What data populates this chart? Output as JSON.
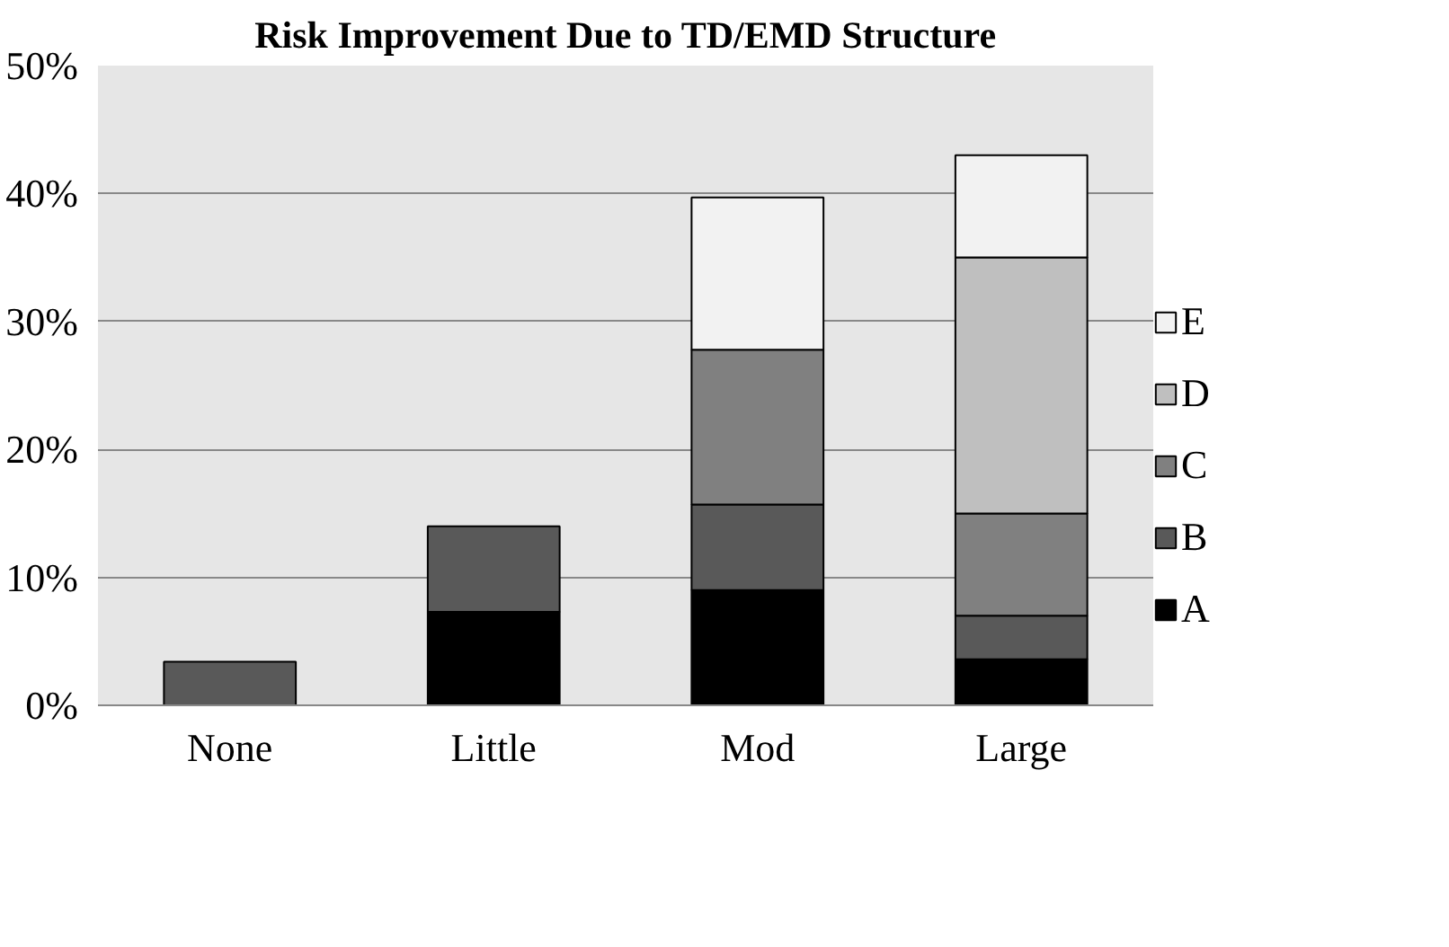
{
  "chart_data": {
    "type": "bar",
    "title": "Risk Improvement Due to TD/EMD Structure",
    "stacked": true,
    "categories": [
      "None",
      "Little",
      "Mod",
      "Large"
    ],
    "series": [
      {
        "name": "A",
        "color": "#000000",
        "values": [
          null,
          7.3,
          9.0,
          3.6
        ]
      },
      {
        "name": "B",
        "color": "#595959",
        "values": [
          3.4,
          6.7,
          6.7,
          3.4
        ]
      },
      {
        "name": "C",
        "color": "#808080",
        "values": [
          null,
          null,
          12.1,
          8.0
        ]
      },
      {
        "name": "D",
        "color": "#bfbfbf",
        "values": [
          null,
          null,
          null,
          20.0
        ]
      },
      {
        "name": "E",
        "color": "#f2f2f2",
        "values": [
          null,
          null,
          11.9,
          8.0
        ]
      }
    ],
    "ylim": [
      0,
      50
    ],
    "yticks": [
      {
        "value": 0,
        "label": "0%"
      },
      {
        "value": 10,
        "label": "10%"
      },
      {
        "value": 20,
        "label": "20%"
      },
      {
        "value": 30,
        "label": "30%"
      },
      {
        "value": 40,
        "label": "40%"
      },
      {
        "value": 50,
        "label": "50%"
      }
    ],
    "grid": "y",
    "legend": "right"
  }
}
